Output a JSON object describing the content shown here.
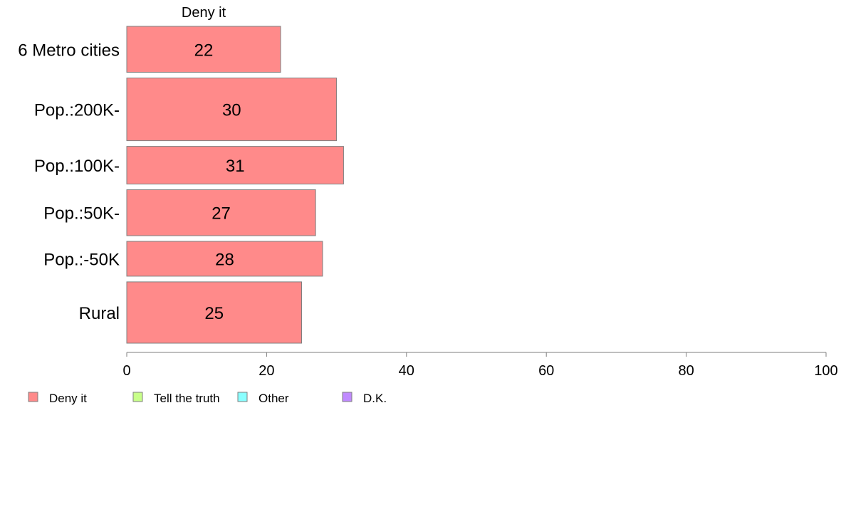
{
  "chart_data": {
    "type": "bar",
    "orientation": "horizontal",
    "stacked": true,
    "series_label_top": "Deny it",
    "categories": [
      "6 Metro cities",
      "Pop.:200K-",
      "Pop.:100K-",
      "Pop.:50K-",
      "Pop.:-50K",
      "Rural"
    ],
    "bar_weights": [
      0.66,
      0.9,
      0.54,
      0.66,
      0.5,
      0.88
    ],
    "series": [
      {
        "name": "Deny it",
        "color": "#ff8a8a",
        "values": [
          22,
          30,
          31,
          27,
          28,
          25
        ],
        "labels": [
          "22",
          "30",
          "31",
          "27",
          "28",
          "25"
        ]
      },
      {
        "name": "Tell the truth",
        "color": "#c8ff8a",
        "values": [
          0,
          0,
          0,
          0,
          0,
          0
        ]
      },
      {
        "name": "Other",
        "color": "#8affff",
        "values": [
          0,
          0,
          0,
          0,
          0,
          0
        ]
      },
      {
        "name": "D.K.",
        "color": "#c08aff",
        "values": [
          0,
          0,
          0,
          0,
          0,
          0
        ]
      }
    ],
    "xlim": [
      0,
      100
    ],
    "xticks": [
      0,
      20,
      40,
      60,
      80,
      100
    ],
    "grid": false,
    "legend_position": "bottom-left"
  }
}
